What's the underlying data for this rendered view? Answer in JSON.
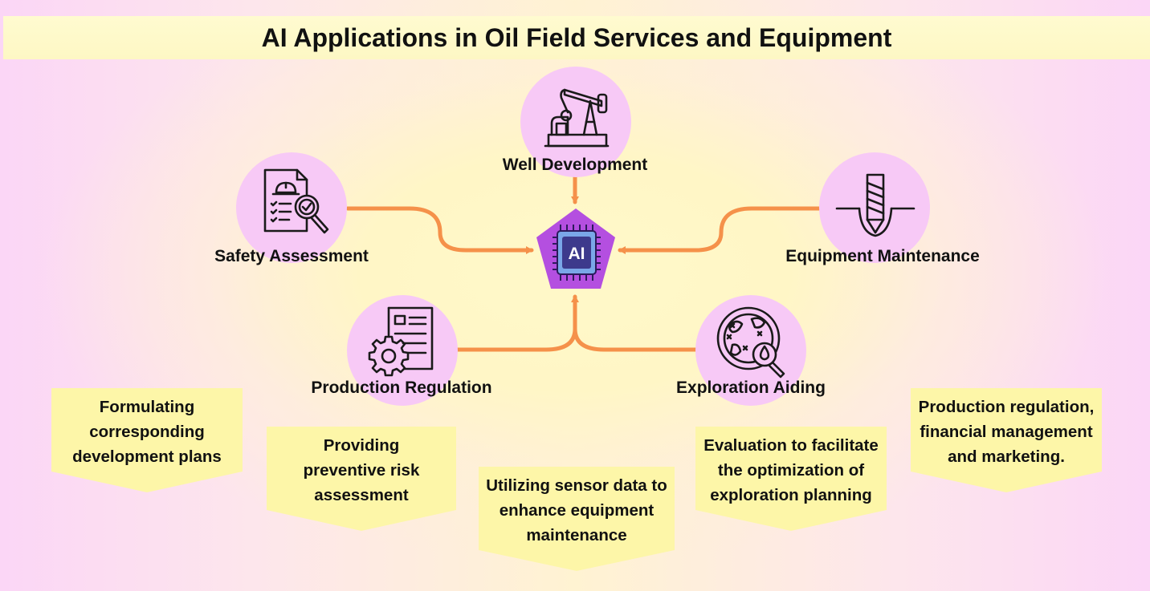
{
  "title": "AI Applications in Oil Field Services and Equipment",
  "center": {
    "label": "AI"
  },
  "nodes": {
    "well_development": "Well Development",
    "safety_assessment": "Safety Assessment",
    "equipment_maintenance": "Equipment Maintenance",
    "production_regulation": "Production Regulation",
    "exploration_aiding": "Exploration Aiding"
  },
  "cards": [
    {
      "lines": [
        "Formulating",
        "corresponding",
        "development plans"
      ]
    },
    {
      "lines": [
        "Providing",
        "preventive risk",
        "assessment"
      ]
    },
    {
      "lines": [
        "Utilizing sensor data to",
        "enhance equipment",
        "maintenance"
      ]
    },
    {
      "lines": [
        "Evaluation to facilitate",
        "the optimization of",
        "exploration planning"
      ]
    },
    {
      "lines": [
        "Production regulation,",
        "financial management",
        "and marketing."
      ]
    }
  ],
  "colors": {
    "connector": "#f5914a",
    "node_fill": "#f7c9f6",
    "card_fill": "#fdf6a8",
    "pentagon": "#b44fe0",
    "chip": "#7aa7e8"
  },
  "icons": [
    "pumpjack-icon",
    "safety-document-icon",
    "drill-bit-icon",
    "gear-document-icon",
    "globe-search-icon",
    "ai-chip-icon"
  ]
}
